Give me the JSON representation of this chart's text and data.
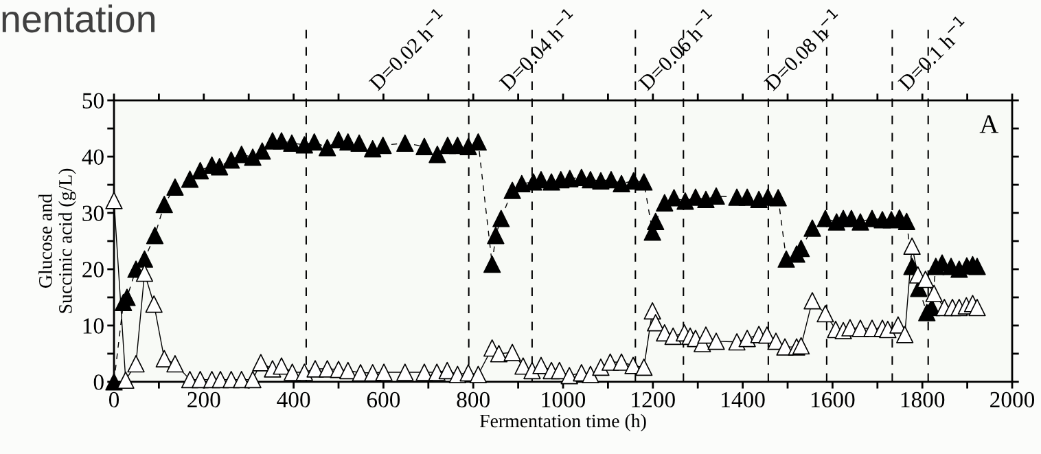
{
  "chart_data": {
    "type": "line",
    "title": "nentation",
    "xlabel": "Fermentation time (h)",
    "ylabel": "Glucose and\nSuccinic acid (g/L)",
    "xlim": [
      0,
      2000
    ],
    "ylim": [
      0,
      50
    ],
    "xticks": [
      0,
      {
        "value": 100,
        "label": null
      },
      200,
      {
        "value": 300,
        "label": null
      },
      400,
      {
        "value": 500,
        "label": null
      },
      600,
      {
        "value": 700,
        "label": null
      },
      800,
      {
        "value": 900,
        "label": null
      },
      1000,
      {
        "value": 1100,
        "label": null
      },
      1200,
      {
        "value": 1300,
        "label": null
      },
      1400,
      {
        "value": 1500,
        "label": null
      },
      1600,
      {
        "value": 1700,
        "label": null
      },
      1800,
      {
        "value": 1900,
        "label": null
      },
      2000
    ],
    "yticks": [
      0,
      {
        "value": 5,
        "label": null
      },
      10,
      {
        "value": 15,
        "label": null
      },
      20,
      {
        "value": 25,
        "label": null
      },
      30,
      {
        "value": 35,
        "label": null
      },
      40,
      {
        "value": 45,
        "label": null
      },
      50
    ],
    "grid": false,
    "legend": false,
    "marker": "triangle",
    "series": [
      {
        "color": "#000000",
        "line_style": "dashed",
        "x": [
          0,
          21,
          29,
          49,
          68,
          91,
          112,
          136,
          169,
          192,
          218,
          235,
          261,
          284,
          309,
          330,
          353,
          373,
          396,
          424,
          446,
          475,
          500,
          521,
          546,
          576,
          599,
          648,
          691,
          720,
          743,
          765,
          789,
          811,
          842,
          850,
          862,
          887,
          908,
          934,
          951,
          974,
          995,
          1015,
          1041,
          1061,
          1084,
          1107,
          1130,
          1157,
          1180,
          1199,
          1206,
          1226,
          1247,
          1272,
          1295,
          1318,
          1341,
          1387,
          1410,
          1436,
          1456,
          1479,
          1497,
          1520,
          1530,
          1555,
          1584,
          1609,
          1624,
          1642,
          1662,
          1688,
          1711,
          1731,
          1749,
          1765,
          1777,
          1792,
          1810,
          1821,
          1830,
          1844,
          1864,
          1882,
          1899,
          1912,
          1922
        ],
        "values": [
          0,
          14.1,
          15,
          20,
          21.8,
          26,
          31.5,
          34.6,
          36,
          37.5,
          38.5,
          38.2,
          39.4,
          40.4,
          39.9,
          41,
          42.8,
          42.8,
          42.4,
          42.1,
          42.6,
          41.6,
          43,
          42.6,
          42.4,
          41.4,
          42,
          42.4,
          41.8,
          40.4,
          42,
          42,
          41.8,
          42.6,
          20.9,
          26,
          29,
          34,
          35.2,
          35.5,
          35.9,
          35.5,
          35.9,
          36.1,
          36.3,
          35.9,
          35.7,
          35.9,
          35.2,
          35.7,
          35.5,
          26.6,
          28.5,
          31.8,
          32.7,
          32.1,
          32.8,
          32.4,
          33,
          32.8,
          32.8,
          32.4,
          32.8,
          32.7,
          21.8,
          22.7,
          23.7,
          27.3,
          29,
          28.4,
          29,
          29,
          28.4,
          29,
          28.8,
          28.8,
          29.1,
          28.5,
          20.5,
          16.6,
          12.3,
          13.2,
          20.5,
          21.1,
          20.5,
          20,
          20.6,
          20.8,
          20.5
        ]
      },
      {
        "color": "#ffffff",
        "line_style": "solid",
        "x": [
          0,
          26,
          49,
          68,
          89,
          112,
          136,
          169,
          192,
          218,
          237,
          261,
          284,
          309,
          327,
          353,
          373,
          397,
          424,
          448,
          475,
          500,
          521,
          549,
          576,
          601,
          648,
          691,
          719,
          742,
          765,
          789,
          811,
          842,
          857,
          887,
          911,
          931,
          951,
          974,
          992,
          1014,
          1041,
          1061,
          1084,
          1105,
          1130,
          1156,
          1180,
          1199,
          1206,
          1226,
          1245,
          1270,
          1283,
          1295,
          1310,
          1318,
          1341,
          1387,
          1410,
          1436,
          1454,
          1474,
          1494,
          1520,
          1530,
          1555,
          1584,
          1607,
          1624,
          1639,
          1662,
          1688,
          1711,
          1723,
          1746,
          1761,
          1777,
          1790,
          1807,
          1826,
          1849,
          1867,
          1882,
          1898,
          1912,
          1922
        ],
        "values": [
          32.2,
          0.3,
          3.2,
          19.3,
          13.8,
          4.1,
          3.2,
          0.4,
          0.4,
          0.4,
          0.4,
          0.4,
          0.4,
          0.4,
          3.4,
          2.3,
          2.8,
          1.7,
          1.7,
          2.3,
          2.3,
          2.2,
          2,
          1.6,
          1.6,
          1.7,
          1.7,
          1.7,
          1.7,
          2,
          1.3,
          1.6,
          1.3,
          6,
          5,
          5.2,
          2.8,
          2,
          2.9,
          2,
          2,
          1.1,
          1.6,
          1.3,
          2.6,
          3.5,
          3.5,
          2.9,
          2.6,
          12.6,
          10.5,
          8.7,
          8.1,
          8.7,
          8.1,
          7.7,
          6.8,
          8.3,
          7.2,
          7.1,
          7.7,
          8.4,
          8.3,
          7.2,
          6.2,
          6.2,
          6.4,
          14.4,
          12.1,
          9.3,
          9.1,
          9.6,
          9.5,
          9.5,
          9.5,
          9.3,
          10.1,
          8.4,
          24.1,
          19,
          18.2,
          15.7,
          13.2,
          13.2,
          13.2,
          13.5,
          13.9,
          13.2
        ]
      }
    ],
    "ref_lines": [
      {
        "axis": "x",
        "value": 428,
        "color": "#000000",
        "line_style": "dashed"
      },
      {
        "axis": "x",
        "value": 790,
        "color": "#000000",
        "line_style": "dashed"
      },
      {
        "axis": "x",
        "value": 931,
        "color": "#000000",
        "line_style": "dashed"
      },
      {
        "axis": "x",
        "value": 1161,
        "color": "#000000",
        "line_style": "dashed"
      },
      {
        "axis": "x",
        "value": 1268,
        "color": "#000000",
        "line_style": "dashed"
      },
      {
        "axis": "x",
        "value": 1457,
        "color": "#000000",
        "line_style": "dashed"
      },
      {
        "axis": "x",
        "value": 1587,
        "color": "#000000",
        "line_style": "dashed"
      },
      {
        "axis": "x",
        "value": 1733,
        "color": "#000000",
        "line_style": "dashed"
      },
      {
        "axis": "x",
        "value": 1813,
        "color": "#000000",
        "line_style": "dashed"
      }
    ],
    "annotations": [
      "D=0.02 h$^{−1}$",
      "D=0.04 h$^{−1}$",
      "D=0.06 h$^{−1}$",
      "D=0.08 h$^{−1}$",
      "D=0.1 h$^{−1}$",
      "A"
    ]
  }
}
